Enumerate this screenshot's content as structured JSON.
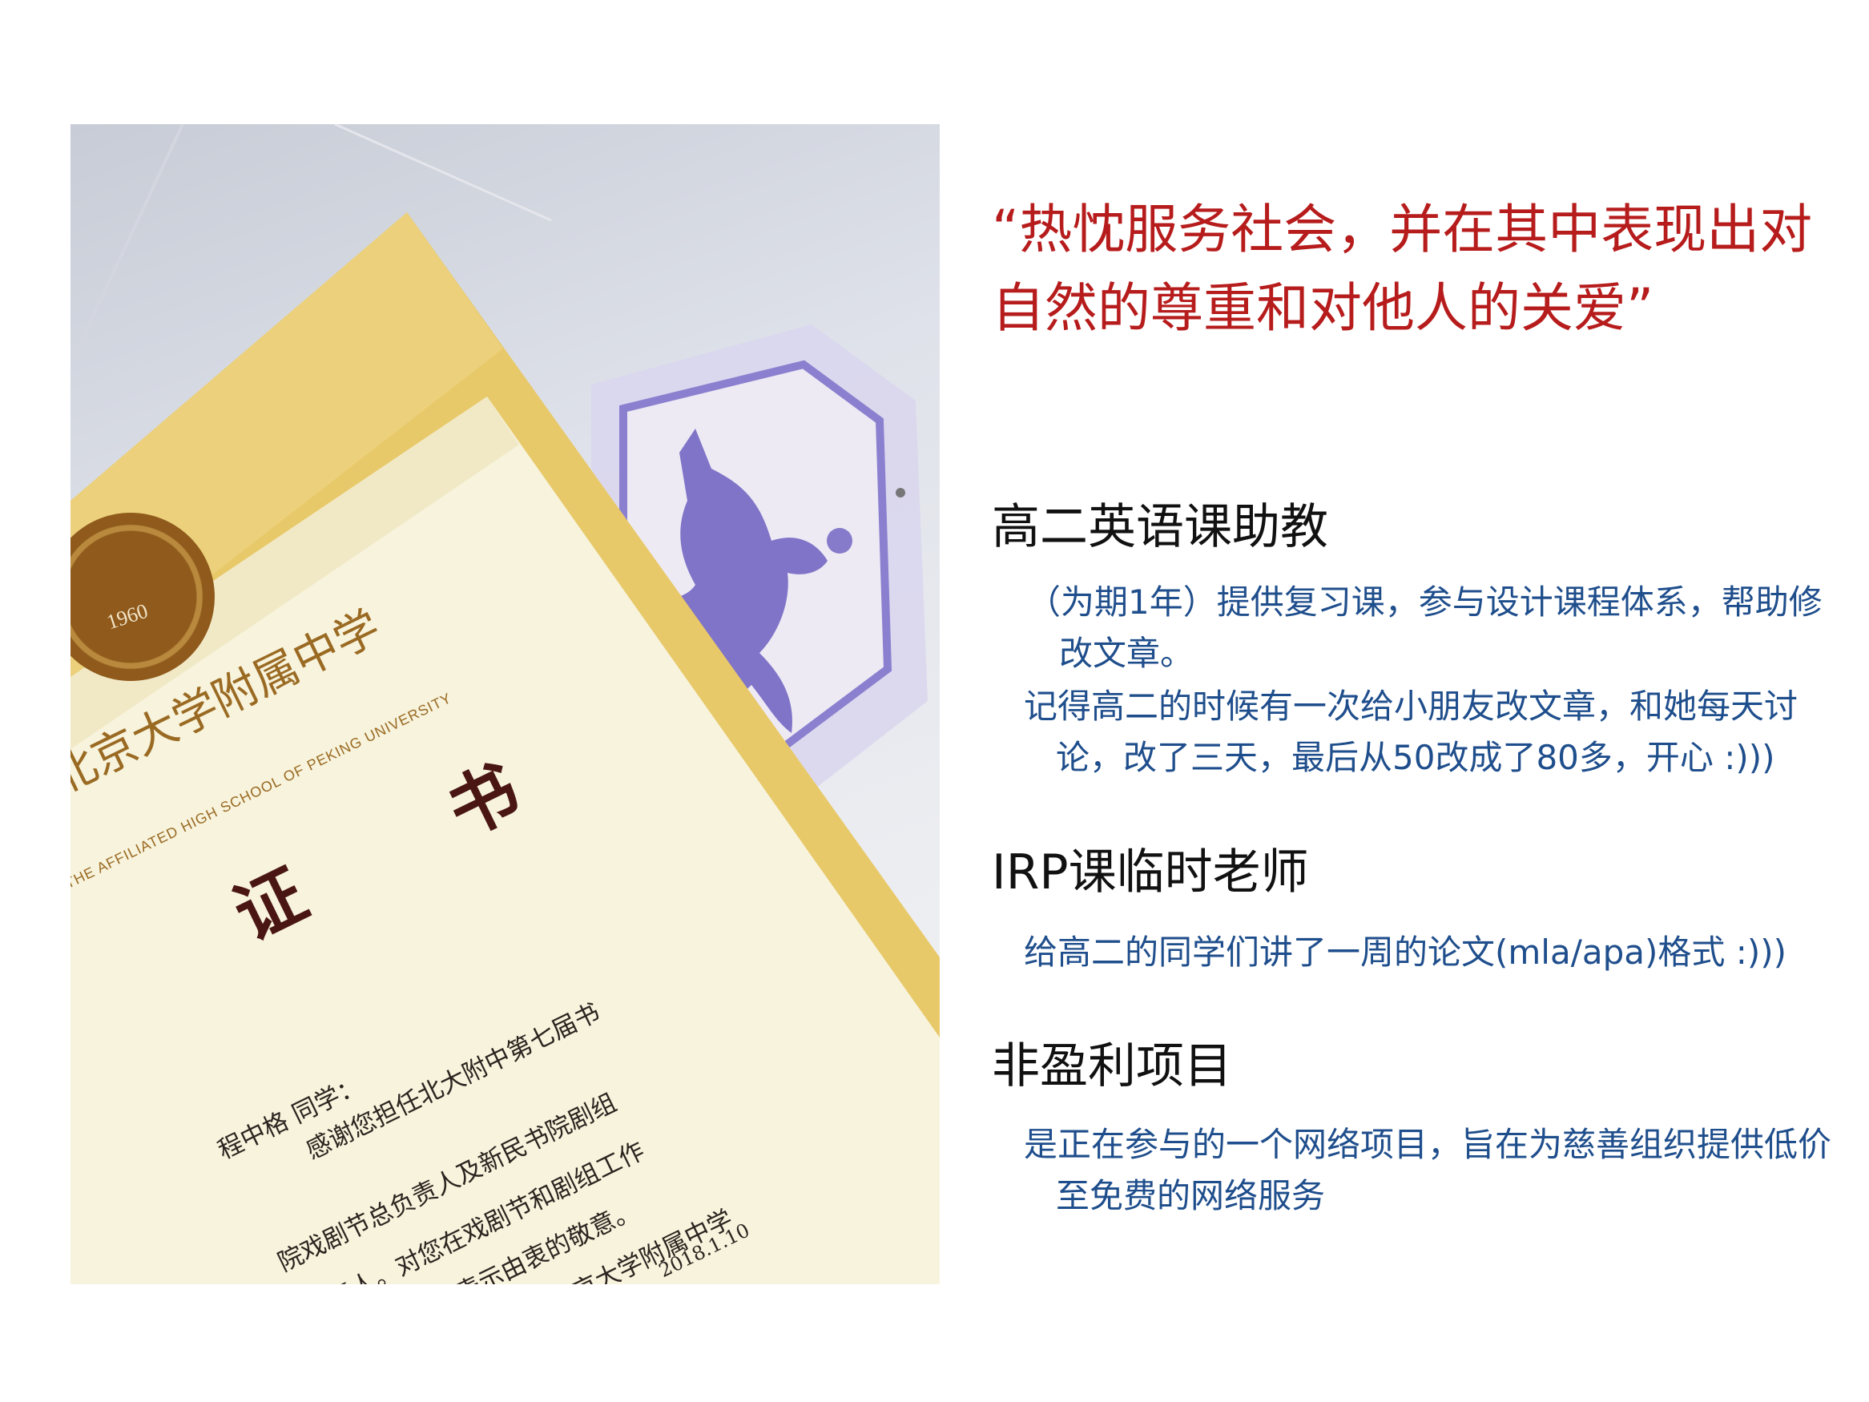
{
  "photo": {
    "certificate": {
      "seal_year": "1960",
      "school_name": "北京大学附属中学",
      "school_name_en": "THE AFFILIATED HIGH SCHOOL OF PEKING UNIVERSITY",
      "title": "证 书",
      "recipient": "程中格 同学：",
      "body_lines": [
        "感谢您担任北大附中第七届书",
        "院戏剧节总负责人及新民书院剧组",
        "负责人。对您在戏剧节和剧组工作",
        "中的付出我们表示由衷的敬意。"
      ],
      "signature": "北京大学附属中学",
      "date": "2018.1.10"
    }
  },
  "quote": "“热忱服务社会，并在其中表现出对自然的尊重和对他人的关爱”",
  "sections": [
    {
      "heading": "高二英语课助教",
      "paragraphs": [
        "（为期1年）提供复习课，参与设计课程体系，帮助修改文章。",
        "记得高二的时候有一次给小朋友改文章，和她每天讨论，改了三天，最后从50改成了80多，开心 :)))"
      ]
    },
    {
      "heading": "IRP课临时老师",
      "paragraphs": [
        "给高二的同学们讲了一周的论文(mla/apa)格式 :)))"
      ]
    },
    {
      "heading": "非盈利项目",
      "paragraphs": [
        "是正在参与的一个网络项目，旨在为慈善组织提供低价至免费的网络服务"
      ]
    }
  ],
  "colors": {
    "quote": "#b71c1c",
    "heading": "#111111",
    "body": "#1f4e8c",
    "certificate_gold": "#e8c96a",
    "certificate_paper": "#f7f3dc",
    "shield_purple": "#6c5fc0"
  }
}
